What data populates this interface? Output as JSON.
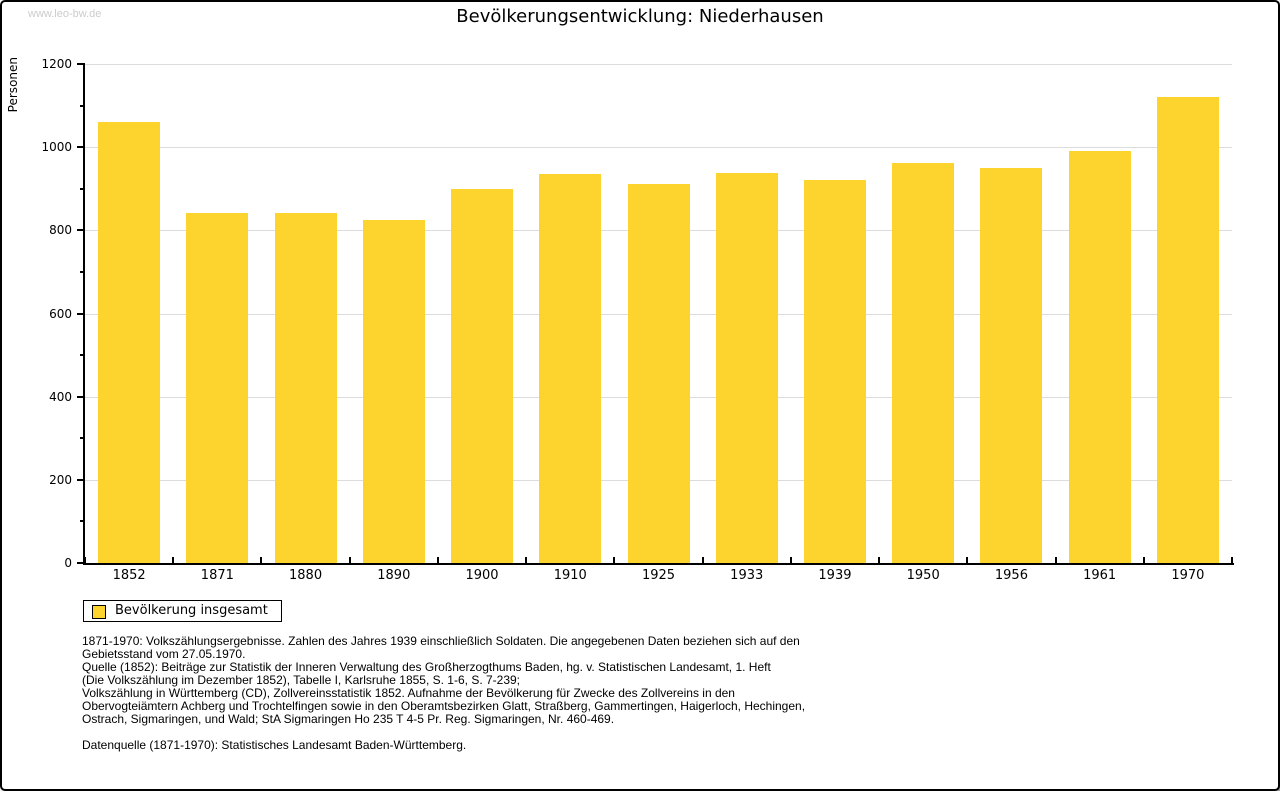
{
  "page": {
    "watermark": "www.leo-bw.de",
    "title": "Bevölkerungsentwicklung: Niederhausen"
  },
  "chart_data": {
    "type": "bar",
    "title": "Bevölkerungsentwicklung: Niederhausen",
    "xlabel": "",
    "ylabel": "Personen",
    "categories": [
      "1852",
      "1871",
      "1880",
      "1890",
      "1900",
      "1910",
      "1925",
      "1933",
      "1939",
      "1950",
      "1956",
      "1961",
      "1970"
    ],
    "values": [
      1060,
      841,
      841,
      825,
      899,
      936,
      911,
      938,
      920,
      962,
      949,
      991,
      1120
    ],
    "ylim": [
      0,
      1200
    ],
    "ytick_major_step": 200,
    "ytick_minor_step": 100,
    "grid": "horizontal gridlines at major ticks only",
    "legend_position": "below plot, bottom-left",
    "bar_color": "#fdd32d",
    "gridline_color": "#dcdcdc",
    "axis_color": "#000000"
  },
  "legend": {
    "label": "Bevölkerung insgesamt",
    "swatch_color": "#fdd32d"
  },
  "footer": {
    "lines": [
      "1871-1970: Volkszählungsergebnisse. Zahlen des Jahres 1939 einschließlich Soldaten. Die angegebenen Daten beziehen sich auf den",
      "Gebietsstand vom 27.05.1970.",
      "Quelle (1852): Beiträge zur Statistik der Inneren Verwaltung des Großherzogthums Baden, hg. v. Statistischen Landesamt, 1. Heft",
      "(Die Volkszählung im Dezember 1852), Tabelle I, Karlsruhe 1855, S. 1-6, S. 7-239;",
      "Volkszählung in Württemberg (CD), Zollvereinsstatistik 1852. Aufnahme der Bevölkerung für Zwecke des Zollvereins in den",
      "Obervogteiämtern Achberg und Trochtelfingen sowie in den Oberamtsbezirken Glatt, Straßberg, Gammertingen, Haigerloch, Hechingen,",
      "Ostrach, Sigmaringen, und Wald; StA Sigmaringen Ho 235 T 4-5 Pr. Reg. Sigmaringen, Nr. 460-469.",
      "",
      "Datenquelle (1871-1970): Statistisches Landesamt Baden-Württemberg."
    ]
  }
}
